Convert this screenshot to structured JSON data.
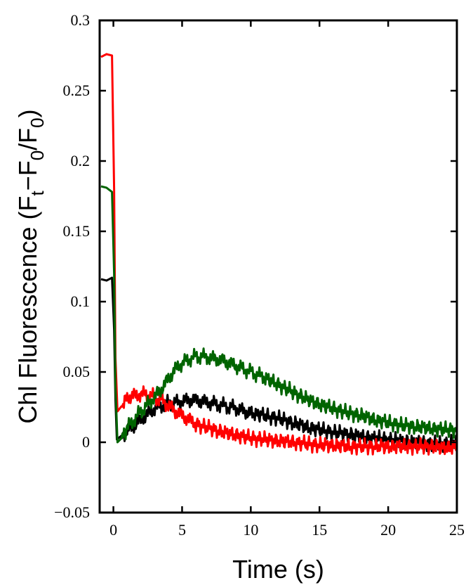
{
  "chart_data": {
    "type": "line",
    "xlabel": "Time (s)",
    "ylabel": {
      "prefix": "Chl Fluorescence (F",
      "sub1": "t",
      "mid": "−F",
      "sub2": "0",
      "mid2": "/F",
      "sub3": "0",
      "suffix": ")"
    },
    "xlim": [
      -1,
      25
    ],
    "ylim": [
      -0.05,
      0.3
    ],
    "xticks": [
      0,
      5,
      10,
      15,
      20,
      25
    ],
    "xtick_labels": [
      "0",
      "5",
      "10",
      "15",
      "20",
      "25"
    ],
    "yticks": [
      -0.05,
      0,
      0.05,
      0.1,
      0.15,
      0.2,
      0.25,
      0.3
    ],
    "ytick_labels": [
      "−0.05",
      "0",
      "0.05",
      "0.1",
      "0.15",
      "0.2",
      "0.25",
      "0.3"
    ],
    "grid": false,
    "series": [
      {
        "color": "#000000",
        "x": [
          -0.9,
          -0.5,
          -0.1,
          0.05,
          0.15,
          0.25,
          0.5,
          1,
          1.5,
          2,
          2.5,
          3,
          3.5,
          4,
          4.5,
          5,
          5.5,
          6,
          6.5,
          7,
          7.5,
          8,
          8.5,
          9,
          9.5,
          10,
          11,
          12,
          13,
          14,
          15,
          16,
          17,
          18,
          19,
          20,
          21,
          22,
          23,
          24,
          25
        ],
        "y": [
          0.116,
          0.115,
          0.117,
          0.08,
          0.03,
          0.002,
          0.004,
          0.008,
          0.012,
          0.016,
          0.02,
          0.024,
          0.026,
          0.028,
          0.028,
          0.029,
          0.03,
          0.03,
          0.029,
          0.028,
          0.027,
          0.026,
          0.025,
          0.024,
          0.022,
          0.021,
          0.019,
          0.017,
          0.014,
          0.011,
          0.009,
          0.007,
          0.006,
          0.004,
          0.003,
          0.002,
          0.001,
          0.0,
          -0.001,
          -0.001,
          0.0
        ]
      },
      {
        "color": "#ff0000",
        "x": [
          -0.9,
          -0.5,
          -0.1,
          0.05,
          0.15,
          0.3,
          0.7,
          1,
          1.5,
          2,
          2.5,
          3,
          3.5,
          4,
          4.5,
          5,
          5.5,
          6,
          7,
          8,
          9,
          10,
          11,
          12,
          13,
          14,
          15,
          16,
          17,
          18,
          19,
          20,
          21,
          22,
          23,
          24,
          25
        ],
        "y": [
          0.274,
          0.276,
          0.275,
          0.18,
          0.06,
          0.022,
          0.027,
          0.032,
          0.033,
          0.034,
          0.034,
          0.032,
          0.03,
          0.026,
          0.022,
          0.019,
          0.016,
          0.013,
          0.01,
          0.007,
          0.005,
          0.003,
          0.002,
          0.001,
          0.0,
          -0.001,
          -0.002,
          -0.002,
          -0.003,
          -0.003,
          -0.003,
          -0.003,
          -0.003,
          -0.003,
          -0.003,
          -0.004,
          -0.003
        ]
      },
      {
        "color": "#006400",
        "x": [
          -0.9,
          -0.5,
          -0.1,
          0.05,
          0.15,
          0.3,
          0.6,
          1,
          1.5,
          2,
          2.5,
          3,
          3.5,
          4,
          4.5,
          5,
          5.5,
          6,
          6.5,
          7,
          7.5,
          8,
          8.5,
          9,
          9.5,
          10,
          10.5,
          11,
          12,
          13,
          14,
          15,
          16,
          17,
          18,
          19,
          20,
          21,
          22,
          23,
          24,
          25
        ],
        "y": [
          0.182,
          0.181,
          0.178,
          0.12,
          0.04,
          0.0,
          0.003,
          0.01,
          0.016,
          0.022,
          0.027,
          0.032,
          0.038,
          0.045,
          0.052,
          0.056,
          0.059,
          0.061,
          0.061,
          0.06,
          0.059,
          0.058,
          0.056,
          0.054,
          0.052,
          0.05,
          0.048,
          0.046,
          0.041,
          0.036,
          0.031,
          0.027,
          0.024,
          0.021,
          0.019,
          0.016,
          0.014,
          0.012,
          0.011,
          0.01,
          0.009,
          0.009
        ]
      }
    ]
  }
}
